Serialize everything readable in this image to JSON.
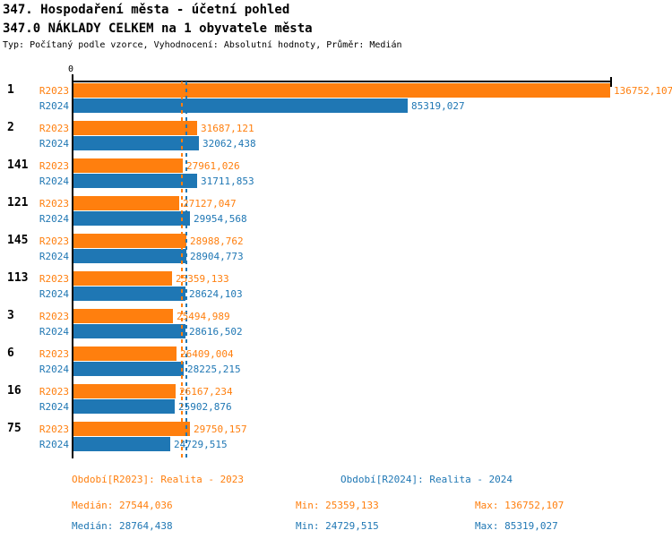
{
  "header": {
    "title": "347. Hospodaření města - účetní pohled",
    "subtitle": "347.0 NÁKLADY CELKEM na 1 obyvatele města",
    "meta": "Typ: Počítaný podle vzorce, Vyhodnocení: Absolutní hodnoty, Průměr: Medián"
  },
  "chart_data": {
    "type": "bar",
    "orientation": "horizontal",
    "title": "347.0 NÁKLADY CELKEM na 1 obyvatele města",
    "x_axis": {
      "zero_label": "0",
      "max": 136752.107,
      "xlim": [
        0,
        136752.107
      ],
      "grid": false
    },
    "series": [
      {
        "name": "R2023",
        "color": "#FF7F0E",
        "period": "Realita - 2023"
      },
      {
        "name": "R2024",
        "color": "#1F77B4",
        "period": "Realita - 2024"
      }
    ],
    "groups": [
      {
        "rank": "1",
        "r2023": 136752.107,
        "r2024": 85319.027,
        "r2023_label": "136752,107",
        "r2024_label": "85319,027"
      },
      {
        "rank": "2",
        "r2023": 31687.121,
        "r2024": 32062.438,
        "r2023_label": "31687,121",
        "r2024_label": "32062,438"
      },
      {
        "rank": "141",
        "r2023": 27961.026,
        "r2024": 31711.853,
        "r2023_label": "27961,026",
        "r2024_label": "31711,853"
      },
      {
        "rank": "121",
        "r2023": 27127.047,
        "r2024": 29954.568,
        "r2023_label": "27127,047",
        "r2024_label": "29954,568"
      },
      {
        "rank": "145",
        "r2023": 28988.762,
        "r2024": 28904.773,
        "r2023_label": "28988,762",
        "r2024_label": "28904,773"
      },
      {
        "rank": "113",
        "r2023": 25359.133,
        "r2024": 28624.103,
        "r2023_label": "25359,133",
        "r2024_label": "28624,103"
      },
      {
        "rank": "3",
        "r2023": 25494.989,
        "r2024": 28616.502,
        "r2023_label": "25494,989",
        "r2024_label": "28616,502"
      },
      {
        "rank": "6",
        "r2023": 26409.004,
        "r2024": 28225.215,
        "r2023_label": "26409,004",
        "r2024_label": "28225,215"
      },
      {
        "rank": "16",
        "r2023": 26167.234,
        "r2024": 25902.876,
        "r2023_label": "26167,234",
        "r2024_label": "25902,876"
      },
      {
        "rank": "75",
        "r2023": 29750.157,
        "r2024": 24729.515,
        "r2023_label": "29750,157",
        "r2024_label": "24729,515"
      }
    ],
    "medians": {
      "r2023": 27544.036,
      "r2024": 28764.438
    },
    "legend_position": "bottom"
  },
  "legend": {
    "r2023": "Období[R2023]: Realita - 2023",
    "r2024": "Období[R2024]: Realita - 2024"
  },
  "stats": {
    "r2023": {
      "median": "Medián: 27544,036",
      "min": "Min: 25359,133",
      "max": "Max: 136752,107"
    },
    "r2024": {
      "median": "Medián: 28764,438",
      "min": "Min: 24729,515",
      "max": "Max: 85319,027"
    }
  }
}
